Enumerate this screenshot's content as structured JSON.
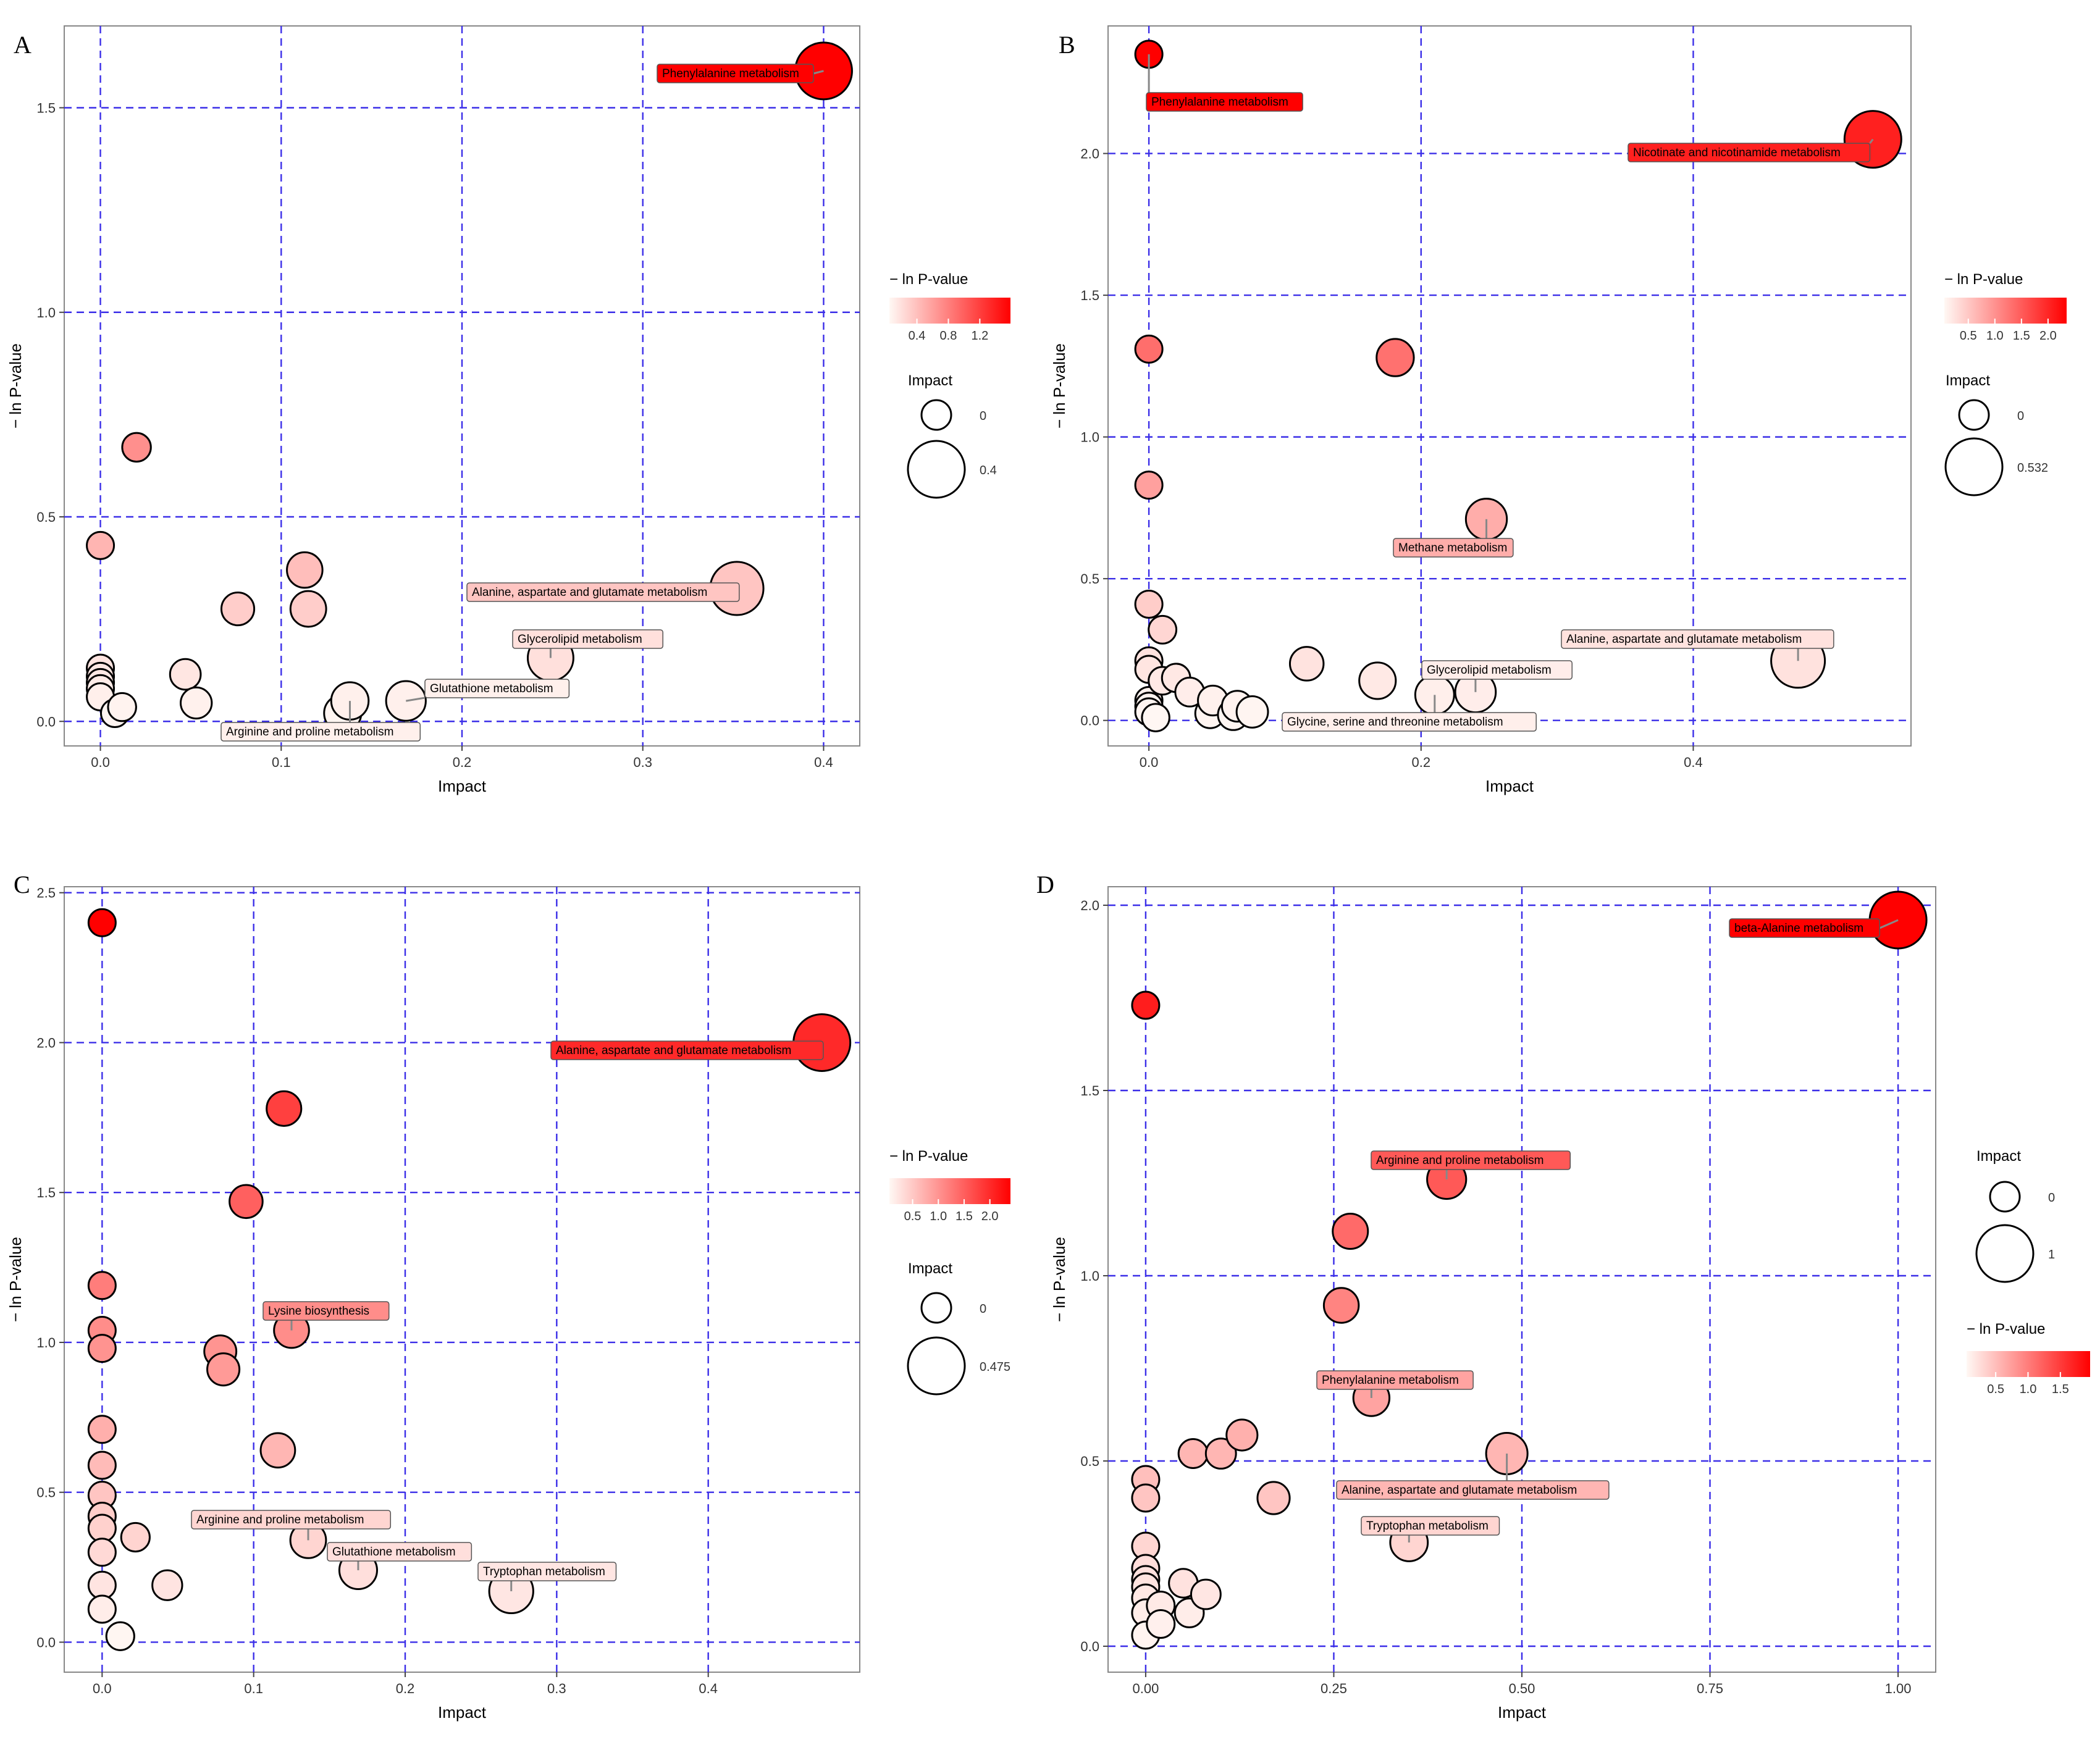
{
  "figure": {
    "panels": [
      "A",
      "B",
      "C",
      "D"
    ]
  },
  "chart_data": [
    {
      "panel": "A",
      "type": "scatter",
      "xlabel": "Impact",
      "ylabel": "− ln P-value",
      "xlim": [
        -0.02,
        0.42
      ],
      "ylim": [
        -0.06,
        1.7
      ],
      "xticks": [
        0,
        0.1,
        0.2,
        0.3,
        0.4
      ],
      "xtick_labels": [
        "0.0",
        "0.1",
        "0.2",
        "0.3",
        "0.4"
      ],
      "yticks": [
        0,
        0.5,
        1.0,
        1.5
      ],
      "ytick_labels": [
        "0.0",
        "0.5",
        "1.0",
        "1.5"
      ],
      "color_max": 1.59,
      "size_max": 0.4,
      "grid": true,
      "color_legend": {
        "title": "− ln P-value",
        "ticks": [
          0.4,
          0.8,
          1.2
        ],
        "labels": [
          "0.4",
          "0.8",
          "1.2"
        ]
      },
      "size_legend": {
        "title": "Impact",
        "values": [
          0,
          0.4
        ],
        "labels": [
          "0",
          "0.4"
        ]
      },
      "points": [
        {
          "x": 0.4,
          "y": 1.59,
          "label": "Phenylalanine metabolism"
        },
        {
          "x": 0.02,
          "y": 0.67
        },
        {
          "x": 0.0,
          "y": 0.43
        },
        {
          "x": 0.113,
          "y": 0.37
        },
        {
          "x": 0.115,
          "y": 0.275
        },
        {
          "x": 0.076,
          "y": 0.275
        },
        {
          "x": 0.352,
          "y": 0.325,
          "label": "Alanine, aspartate and glutamate metabolism"
        },
        {
          "x": 0.249,
          "y": 0.155,
          "label": "Glycerolipid metabolism"
        },
        {
          "x": 0.169,
          "y": 0.05,
          "label": "Glutathione metabolism"
        },
        {
          "x": 0.138,
          "y": 0.05,
          "label": "Arginine and proline metabolism"
        },
        {
          "x": 0.134,
          "y": 0.02
        },
        {
          "x": 0.047,
          "y": 0.115
        },
        {
          "x": 0.053,
          "y": 0.045
        },
        {
          "x": 0.0,
          "y": 0.13
        },
        {
          "x": 0.0,
          "y": 0.11
        },
        {
          "x": 0.0,
          "y": 0.095
        },
        {
          "x": 0.0,
          "y": 0.08
        },
        {
          "x": 0.0,
          "y": 0.06
        },
        {
          "x": 0.012,
          "y": 0.035
        },
        {
          "x": 0.008,
          "y": 0.02
        }
      ]
    },
    {
      "panel": "B",
      "type": "scatter",
      "xlabel": "Impact",
      "ylabel": "− ln P-value",
      "xlim": [
        -0.03,
        0.56
      ],
      "ylim": [
        -0.09,
        2.45
      ],
      "xticks": [
        0,
        0.2,
        0.4
      ],
      "xtick_labels": [
        "0.0",
        "0.2",
        "0.4"
      ],
      "yticks": [
        0,
        0.5,
        1.0,
        1.5,
        2.0
      ],
      "ytick_labels": [
        "0.0",
        "0.5",
        "1.0",
        "1.5",
        "2.0"
      ],
      "color_max": 2.35,
      "size_max": 0.532,
      "grid": true,
      "color_legend": {
        "title": "− ln P-value",
        "ticks": [
          0.5,
          1.0,
          1.5,
          2.0
        ],
        "labels": [
          "0.5",
          "1.0",
          "1.5",
          "2.0"
        ]
      },
      "size_legend": {
        "title": "Impact",
        "values": [
          0,
          0.532
        ],
        "labels": [
          "0",
          "0.532"
        ]
      },
      "points": [
        {
          "x": 0.0,
          "y": 2.35,
          "label": "Phenylalanine metabolism"
        },
        {
          "x": 0.532,
          "y": 2.05,
          "label": "Nicotinate and nicotinamide metabolism"
        },
        {
          "x": 0.0,
          "y": 1.31
        },
        {
          "x": 0.181,
          "y": 1.28
        },
        {
          "x": 0.0,
          "y": 0.83
        },
        {
          "x": 0.248,
          "y": 0.71,
          "label": "Methane metabolism"
        },
        {
          "x": 0.0,
          "y": 0.41
        },
        {
          "x": 0.01,
          "y": 0.32
        },
        {
          "x": 0.477,
          "y": 0.21,
          "label": "Alanine, aspartate and glutamate metabolism"
        },
        {
          "x": 0.116,
          "y": 0.2
        },
        {
          "x": 0.168,
          "y": 0.14
        },
        {
          "x": 0.24,
          "y": 0.1,
          "label": "Glycerolipid metabolism"
        },
        {
          "x": 0.21,
          "y": 0.09,
          "label": "Glycine, serine and threonine metabolism"
        },
        {
          "x": 0.0,
          "y": 0.21
        },
        {
          "x": 0.0,
          "y": 0.18
        },
        {
          "x": 0.02,
          "y": 0.15
        },
        {
          "x": 0.01,
          "y": 0.14
        },
        {
          "x": 0.03,
          "y": 0.1
        },
        {
          "x": 0.047,
          "y": 0.07
        },
        {
          "x": 0.065,
          "y": 0.05
        },
        {
          "x": 0.0,
          "y": 0.07
        },
        {
          "x": 0.0,
          "y": 0.05
        },
        {
          "x": 0.0,
          "y": 0.03
        },
        {
          "x": 0.005,
          "y": 0.01
        },
        {
          "x": 0.045,
          "y": 0.025
        },
        {
          "x": 0.062,
          "y": 0.02
        },
        {
          "x": 0.076,
          "y": 0.03
        }
      ]
    },
    {
      "panel": "C",
      "type": "scatter",
      "xlabel": "Impact",
      "ylabel": "− ln P-value",
      "xlim": [
        -0.025,
        0.5
      ],
      "ylim": [
        -0.1,
        2.52
      ],
      "xticks": [
        0,
        0.1,
        0.2,
        0.3,
        0.4
      ],
      "xtick_labels": [
        "0.0",
        "0.1",
        "0.2",
        "0.3",
        "0.4"
      ],
      "yticks": [
        0,
        0.5,
        1.0,
        1.5,
        2.0,
        2.5
      ],
      "ytick_labels": [
        "0.0",
        "0.5",
        "1.0",
        "1.5",
        "2.0",
        "2.5"
      ],
      "color_max": 2.4,
      "size_max": 0.475,
      "grid": true,
      "color_legend": {
        "title": "− ln P-value",
        "ticks": [
          0.5,
          1.0,
          1.5,
          2.0
        ],
        "labels": [
          "0.5",
          "1.0",
          "1.5",
          "2.0"
        ]
      },
      "size_legend": {
        "title": "Impact",
        "values": [
          0,
          0.475
        ],
        "labels": [
          "0",
          "0.475"
        ]
      },
      "points": [
        {
          "x": 0.0,
          "y": 2.4
        },
        {
          "x": 0.475,
          "y": 2.0,
          "label": "Alanine, aspartate and glutamate metabolism"
        },
        {
          "x": 0.12,
          "y": 1.78
        },
        {
          "x": 0.095,
          "y": 1.47
        },
        {
          "x": 0.0,
          "y": 1.19
        },
        {
          "x": 0.125,
          "y": 1.04,
          "label": "Lysine biosynthesis"
        },
        {
          "x": 0.0,
          "y": 1.04
        },
        {
          "x": 0.0,
          "y": 0.98
        },
        {
          "x": 0.078,
          "y": 0.97
        },
        {
          "x": 0.08,
          "y": 0.91
        },
        {
          "x": 0.0,
          "y": 0.71
        },
        {
          "x": 0.116,
          "y": 0.64
        },
        {
          "x": 0.0,
          "y": 0.59
        },
        {
          "x": 0.0,
          "y": 0.49
        },
        {
          "x": 0.0,
          "y": 0.42
        },
        {
          "x": 0.0,
          "y": 0.38
        },
        {
          "x": 0.022,
          "y": 0.35
        },
        {
          "x": 0.136,
          "y": 0.34,
          "label": "Arginine and proline metabolism"
        },
        {
          "x": 0.0,
          "y": 0.3
        },
        {
          "x": 0.169,
          "y": 0.24,
          "label": "Glutathione metabolism"
        },
        {
          "x": 0.27,
          "y": 0.17,
          "label": "Tryptophan metabolism"
        },
        {
          "x": 0.043,
          "y": 0.19
        },
        {
          "x": 0.0,
          "y": 0.19
        },
        {
          "x": 0.0,
          "y": 0.11
        },
        {
          "x": 0.012,
          "y": 0.02
        }
      ]
    },
    {
      "panel": "D",
      "type": "scatter",
      "xlabel": "Impact",
      "ylabel": "− ln P-value",
      "xlim": [
        -0.05,
        1.05
      ],
      "ylim": [
        -0.07,
        2.05
      ],
      "xticks": [
        0,
        0.25,
        0.5,
        0.75,
        1.0
      ],
      "xtick_labels": [
        "0.00",
        "0.25",
        "0.50",
        "0.75",
        "1.00"
      ],
      "yticks": [
        0,
        0.5,
        1.0,
        1.5,
        2.0
      ],
      "ytick_labels": [
        "0.0",
        "0.5",
        "1.0",
        "1.5",
        "2.0"
      ],
      "color_max": 1.96,
      "size_max": 1.0,
      "grid": true,
      "color_legend": {
        "title": "− ln P-value",
        "ticks": [
          0.5,
          1.0,
          1.5
        ],
        "labels": [
          "0.5",
          "1.0",
          "1.5"
        ]
      },
      "size_legend": {
        "title": "Impact",
        "values": [
          0,
          1
        ],
        "labels": [
          "0",
          "1"
        ]
      },
      "points": [
        {
          "x": 1.0,
          "y": 1.96,
          "label": "beta-Alanine metabolism"
        },
        {
          "x": 0.0,
          "y": 1.73
        },
        {
          "x": 0.4,
          "y": 1.26,
          "label": "Arginine and proline metabolism"
        },
        {
          "x": 0.272,
          "y": 1.12
        },
        {
          "x": 0.26,
          "y": 0.92
        },
        {
          "x": 0.3,
          "y": 0.67,
          "label": "Phenylalanine metabolism"
        },
        {
          "x": 0.48,
          "y": 0.52,
          "label": "Alanine, aspartate and glutamate metabolism"
        },
        {
          "x": 0.35,
          "y": 0.28,
          "label": "Tryptophan metabolism"
        },
        {
          "x": 0.128,
          "y": 0.57
        },
        {
          "x": 0.063,
          "y": 0.52
        },
        {
          "x": 0.1,
          "y": 0.52
        },
        {
          "x": 0.17,
          "y": 0.4
        },
        {
          "x": 0.0,
          "y": 0.45
        },
        {
          "x": 0.0,
          "y": 0.4
        },
        {
          "x": 0.0,
          "y": 0.27
        },
        {
          "x": 0.0,
          "y": 0.21
        },
        {
          "x": 0.0,
          "y": 0.18
        },
        {
          "x": 0.0,
          "y": 0.16
        },
        {
          "x": 0.05,
          "y": 0.17
        },
        {
          "x": 0.08,
          "y": 0.14
        },
        {
          "x": 0.0,
          "y": 0.13
        },
        {
          "x": 0.02,
          "y": 0.11
        },
        {
          "x": 0.058,
          "y": 0.09
        },
        {
          "x": 0.0,
          "y": 0.09
        },
        {
          "x": 0.02,
          "y": 0.06
        },
        {
          "x": 0.0,
          "y": 0.03
        }
      ]
    }
  ]
}
